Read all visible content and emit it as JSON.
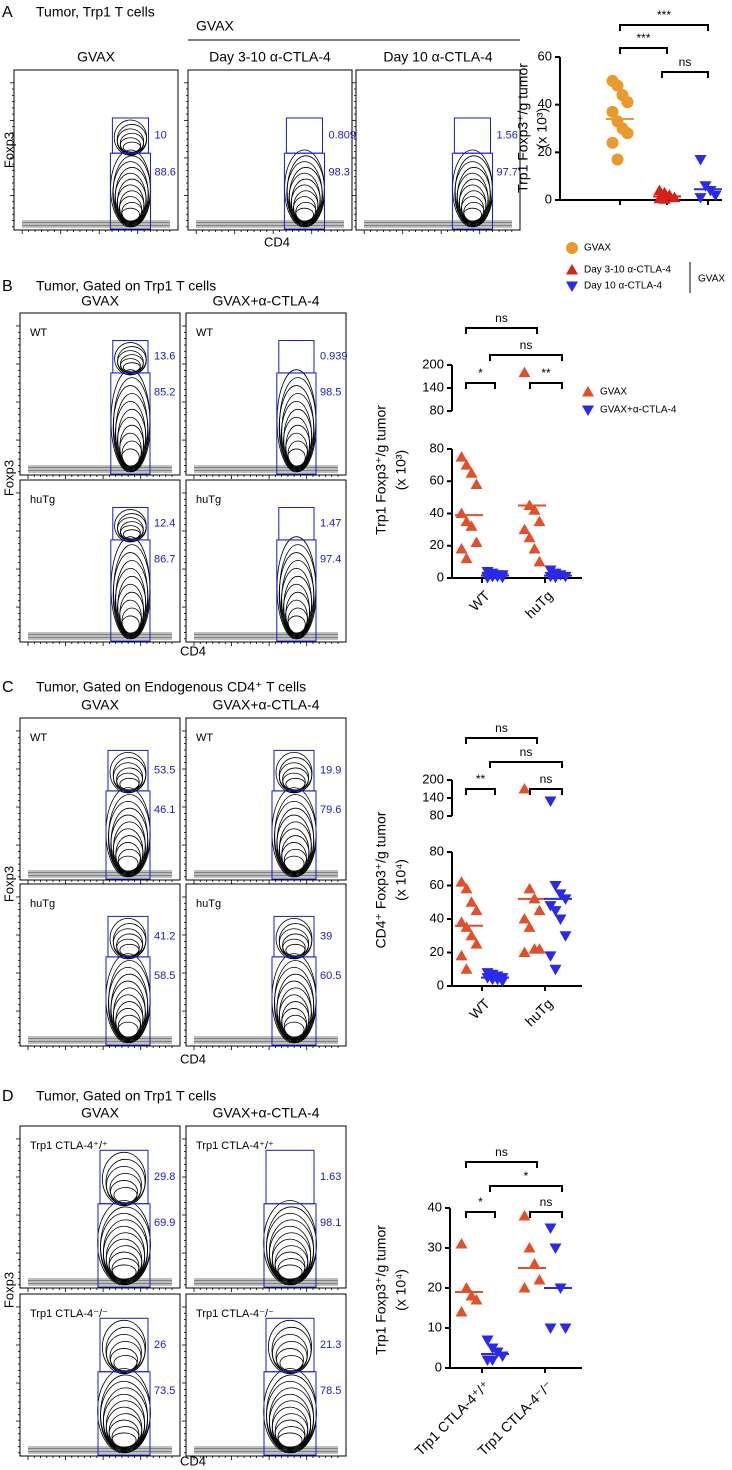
{
  "panels": [
    {
      "letter": "A",
      "title": "Tumor, Trp1 T cells",
      "group_label": "GVAX",
      "columns": [
        "GVAX",
        "Day 3-10 α-CTLA-4",
        "Day 10 α-CTLA-4"
      ],
      "rows": [
        {
          "gates": [
            [
              10,
              88.6
            ],
            [
              0.809,
              98.3
            ],
            [
              1.56,
              97.7
            ]
          ]
        }
      ],
      "y_label": "Foxp3",
      "x_label": "CD4"
    },
    {
      "letter": "B",
      "title": "Tumor, Gated on Trp1 T cells",
      "columns": [
        "GVAX",
        "GVAX+α-CTLA-4"
      ],
      "rows": [
        {
          "label": "WT",
          "gates": [
            [
              13.6,
              85.2
            ],
            [
              0.939,
              98.5
            ]
          ]
        },
        {
          "label": "huTg",
          "gates": [
            [
              12.4,
              86.7
            ],
            [
              1.47,
              97.4
            ]
          ]
        }
      ],
      "y_label": "Foxp3",
      "x_label": "CD4"
    },
    {
      "letter": "C",
      "title": "Tumor, Gated on Endogenous CD4⁺ T cells",
      "columns": [
        "GVAX",
        "GVAX+α-CTLA-4"
      ],
      "rows": [
        {
          "label": "WT",
          "gates": [
            [
              53.5,
              46.1
            ],
            [
              19.9,
              79.6
            ]
          ]
        },
        {
          "label": "huTg",
          "gates": [
            [
              41.2,
              58.5
            ],
            [
              39,
              60.5
            ]
          ]
        }
      ],
      "y_label": "Foxp3",
      "x_label": "CD4"
    },
    {
      "letter": "D",
      "title": "Tumor, Gated on Trp1 T cells",
      "columns": [
        "GVAX",
        "GVAX+α-CTLA-4"
      ],
      "rows": [
        {
          "label": "Trp1 CTLA-4⁺/⁺",
          "gates": [
            [
              29.8,
              69.9
            ],
            [
              1.63,
              98.1
            ]
          ]
        },
        {
          "label": "Trp1 CTLA-4⁻/⁻",
          "gates": [
            [
              26,
              73.5
            ],
            [
              21.3,
              78.5
            ]
          ]
        }
      ],
      "y_label": "Foxp3",
      "x_label": "CD4"
    }
  ],
  "chart_data": [
    {
      "type": "scatter",
      "y_label": "Trp1 Foxp3⁺/g tumor",
      "y_label_unit": "(x 10³)",
      "categories": [
        null,
        null,
        null
      ],
      "ylim": [
        0,
        60
      ],
      "yticks": [
        0,
        20,
        40,
        60
      ],
      "series": [
        {
          "name": "GVAX",
          "color": "#e89a2c",
          "marker": "circle",
          "values": [
            [
              50,
              48,
              44,
              41,
              37,
              33,
              30,
              28,
              24,
              17
            ],
            null,
            null
          ],
          "means": [
            34,
            null,
            null
          ]
        },
        {
          "name": "Day 3-10 α-CTLA-4",
          "color": "#d8201a",
          "marker": "triangle-up",
          "values": [
            null,
            [
              4,
              3,
              2,
              1,
              0.5,
              0.3
            ],
            null
          ],
          "means": [
            null,
            1.5,
            null
          ]
        },
        {
          "name": "Day 10 α-CTLA-4",
          "color": "#2a2ae8",
          "marker": "triangle-down",
          "values": [
            null,
            null,
            [
              17,
              6,
              4,
              2,
              1
            ]
          ],
          "means": [
            null,
            null,
            4.5
          ]
        }
      ],
      "significance": [
        "***",
        "***",
        "ns"
      ],
      "legend_group_label": "GVAX"
    },
    {
      "type": "scatter",
      "y_label": "Trp1 Foxp3⁺/g tumor",
      "y_label_unit": "(x 10³)",
      "categories": [
        "WT",
        "huTg"
      ],
      "ylim": [
        0,
        80
      ],
      "yticks": [
        0,
        20,
        40,
        60,
        80
      ],
      "upper_ylim": [
        80,
        200
      ],
      "upper_yticks": [
        80,
        140,
        200
      ],
      "series": [
        {
          "name": "GVAX",
          "color": "#e0502a",
          "marker": "triangle-up",
          "values": [
            [
              75,
              70,
              65,
              58,
              40,
              35,
              32,
              22,
              18,
              12
            ],
            [
              180,
              45,
              42,
              35,
              30,
              25,
              18,
              10
            ]
          ],
          "means": [
            39,
            45
          ]
        },
        {
          "name": "GVAX+α-CTLA-4",
          "color": "#2a2ae8",
          "marker": "triangle-down",
          "values": [
            [
              4,
              3,
              2,
              2,
              1,
              1,
              1,
              0.5,
              0.3
            ],
            [
              5,
              3,
              2,
              1,
              1,
              0.5
            ]
          ],
          "means": [
            1.5,
            1.5
          ]
        }
      ],
      "significance": [
        "ns",
        "ns",
        "*",
        "**"
      ]
    },
    {
      "type": "scatter",
      "y_label": "CD4⁺ Foxp3⁺/g tumor",
      "y_label_unit": "(x 10⁴)",
      "categories": [
        "WT",
        "huTg"
      ],
      "ylim": [
        0,
        80
      ],
      "yticks": [
        0,
        20,
        40,
        60,
        80
      ],
      "upper_ylim": [
        80,
        200
      ],
      "upper_yticks": [
        80,
        140,
        200
      ],
      "series": [
        {
          "color": "#e0502a",
          "marker": "triangle-up",
          "values": [
            [
              62,
              58,
              50,
              45,
              38,
              35,
              30,
              25,
              18,
              10
            ],
            [
              170,
              58,
              52,
              45,
              40,
              35,
              22,
              22,
              20
            ]
          ],
          "means": [
            36,
            52
          ]
        },
        {
          "color": "#2a2ae8",
          "marker": "triangle-down",
          "values": [
            [
              8,
              7,
              6,
              5,
              5,
              4,
              4,
              3
            ],
            [
              130,
              60,
              55,
              52,
              48,
              45,
              40,
              30,
              18,
              10
            ]
          ],
          "means": [
            5,
            52
          ]
        }
      ],
      "significance": [
        "ns",
        "ns",
        "**",
        "ns"
      ]
    },
    {
      "type": "scatter",
      "y_label": "Trp1 Foxp3⁺/g tumor",
      "y_label_unit": "(x 10⁴)",
      "categories": [
        "Trp1 CTLA-4⁺/⁺",
        "Trp1 CTLA-4⁻/⁻"
      ],
      "ylim": [
        0,
        40
      ],
      "yticks": [
        0,
        10,
        20,
        30,
        40
      ],
      "series": [
        {
          "color": "#e0502a",
          "marker": "triangle-up",
          "values": [
            [
              31,
              20,
              18,
              17,
              14
            ],
            [
              38,
              30,
              26,
              22,
              20
            ]
          ],
          "means": [
            19,
            25
          ]
        },
        {
          "color": "#2a2ae8",
          "marker": "triangle-down",
          "values": [
            [
              7,
              5,
              4,
              3,
              2,
              2
            ],
            [
              35,
              30,
              20,
              10,
              10
            ]
          ],
          "means": [
            3.5,
            20
          ]
        }
      ],
      "significance": [
        "ns",
        "*",
        "*",
        "ns"
      ]
    }
  ]
}
